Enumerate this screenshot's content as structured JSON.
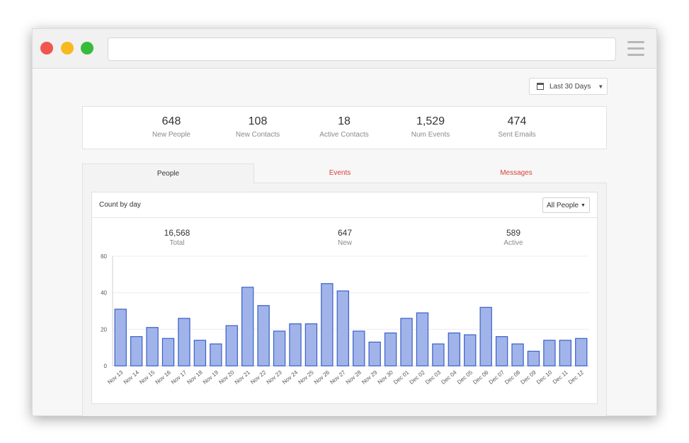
{
  "date_range": {
    "label": "Last 30 Days"
  },
  "summary": [
    {
      "value": "648",
      "label": "New People"
    },
    {
      "value": "108",
      "label": "New Contacts"
    },
    {
      "value": "18",
      "label": "Active Contacts"
    },
    {
      "value": "1,529",
      "label": "Num Events"
    },
    {
      "value": "474",
      "label": "Sent Emails"
    }
  ],
  "tabs": [
    {
      "label": "People"
    },
    {
      "label": "Events"
    },
    {
      "label": "Messages"
    }
  ],
  "panel": {
    "title": "Count by day",
    "filter_label": "All People",
    "stats": [
      {
        "value": "16,568",
        "label": "Total"
      },
      {
        "value": "647",
        "label": "New"
      },
      {
        "value": "589",
        "label": "Active"
      }
    ]
  },
  "colors": {
    "bar_fill": "#a1b4ea",
    "bar_stroke": "#3a5fc7",
    "accent_red": "#d9403a"
  },
  "chart_data": {
    "type": "bar",
    "categories": [
      "Nov 13",
      "Nov 14",
      "Nov 15",
      "Nov 16",
      "Nov 17",
      "Nov 18",
      "Nov 19",
      "Nov 20",
      "Nov 21",
      "Nov 22",
      "Nov 23",
      "Nov 24",
      "Nov 25",
      "Nov 26",
      "Nov 27",
      "Nov 28",
      "Nov 29",
      "Nov 30",
      "Dec 01",
      "Dec 02",
      "Dec 03",
      "Dec 04",
      "Dec 05",
      "Dec 06",
      "Dec 07",
      "Dec 08",
      "Dec 09",
      "Dec 10",
      "Dec 11",
      "Dec 12"
    ],
    "values": [
      31,
      16,
      21,
      15,
      26,
      14,
      12,
      22,
      43,
      33,
      19,
      23,
      23,
      45,
      41,
      19,
      13,
      18,
      26,
      29,
      12,
      18,
      17,
      32,
      16,
      12,
      8,
      14,
      14,
      15
    ],
    "ylim": [
      0,
      60
    ],
    "yticks": [
      0,
      20,
      40,
      60
    ],
    "grid": true
  }
}
